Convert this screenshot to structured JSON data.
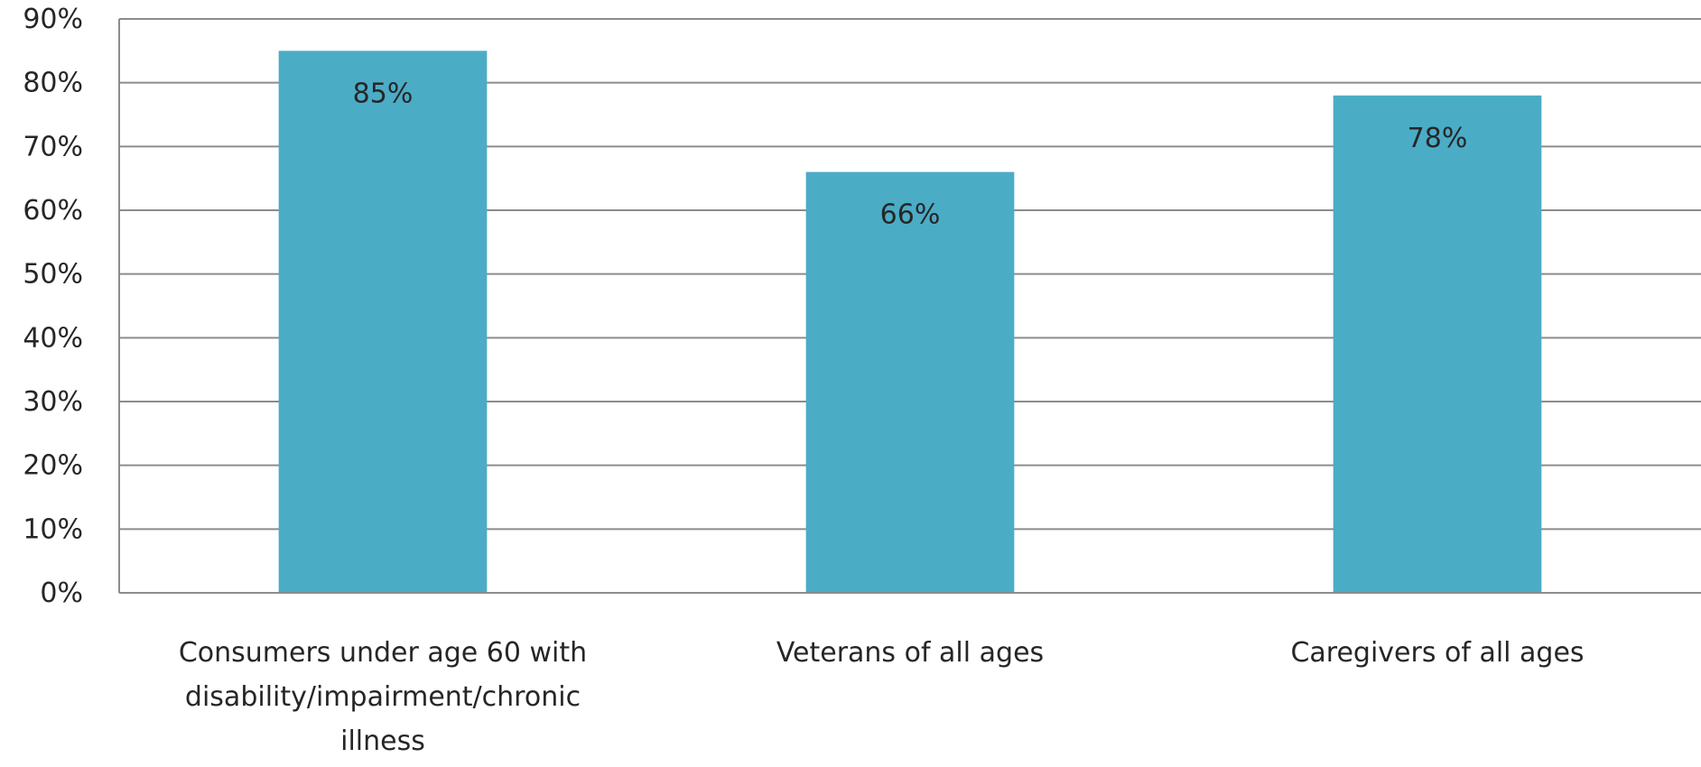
{
  "chart_data": {
    "type": "bar",
    "title": "",
    "xlabel": "",
    "ylabel": "",
    "categories": [
      "Consumers under age 60 with disability/impairment/chronic illness",
      "Veterans of all ages",
      "Caregivers of all ages"
    ],
    "category_label_lines": [
      [
        "Consumers under age 60 with",
        "disability/impairment/chronic",
        "illness"
      ],
      [
        "Veterans of all ages"
      ],
      [
        "Caregivers of all ages"
      ]
    ],
    "values": [
      85,
      66,
      78
    ],
    "data_labels": [
      "85%",
      "66%",
      "78%"
    ],
    "ylim": [
      0,
      90
    ],
    "y_ticks": [
      0,
      10,
      20,
      30,
      40,
      50,
      60,
      70,
      80,
      90
    ],
    "y_tick_labels": [
      "0%",
      "10%",
      "20%",
      "30%",
      "40%",
      "50%",
      "60%",
      "70%",
      "80%",
      "90%"
    ],
    "grid": true,
    "legend": "none",
    "bar_color": "#4bacc6"
  }
}
